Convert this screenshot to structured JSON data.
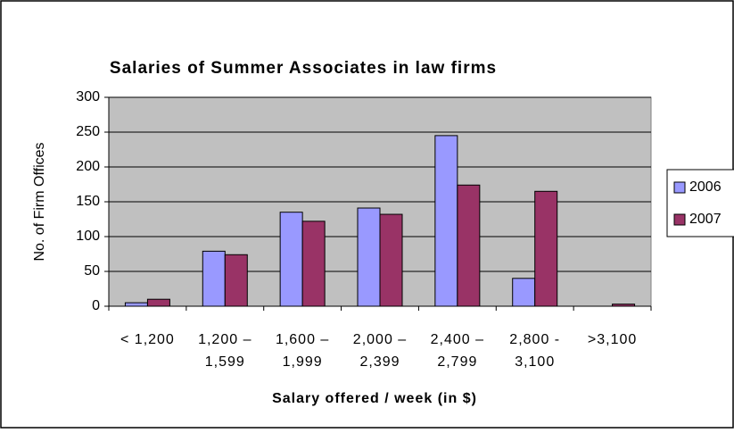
{
  "chart_data": {
    "type": "bar",
    "title": "Salaries of Summer Associates in law firms",
    "x_label": "Salary offered / week (in $)",
    "y_label": "No. of Firm Offices",
    "categories": [
      "< 1,200",
      "1,200 –\n1,599",
      "1,600 –\n1,999",
      "2,000 –\n2,399",
      "2,400 –\n2,799",
      "2,800 -\n3,100",
      ">3,100"
    ],
    "series": [
      {
        "name": "2006",
        "color": "#9999ff",
        "values": [
          5,
          79,
          135,
          141,
          245,
          40,
          0
        ]
      },
      {
        "name": "2007",
        "color": "#993366",
        "values": [
          10,
          74,
          122,
          132,
          174,
          165,
          3
        ]
      }
    ],
    "ylim": [
      0,
      300
    ],
    "yticks": [
      0,
      50,
      100,
      150,
      200,
      250,
      300
    ],
    "grid": true,
    "legend": "right"
  }
}
